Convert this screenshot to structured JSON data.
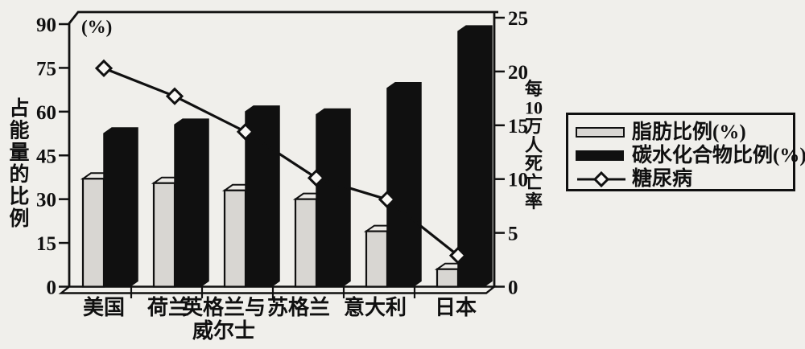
{
  "chart_data": {
    "type": "bar",
    "subtype": "grouped-3d-bars-with-line-overlay",
    "categories": [
      "美国",
      "荷兰",
      "英格兰与\n威尔士",
      "苏格兰",
      "意大利",
      "日本"
    ],
    "series": [
      {
        "name": "脂肪比例(%)",
        "type": "bar",
        "axis": "left",
        "color": "#d8d6d2",
        "values": [
          37,
          35.5,
          33,
          30,
          19,
          6
        ]
      },
      {
        "name": "碳水化合物比例(%)",
        "type": "bar",
        "axis": "left",
        "color": "#101010",
        "values": [
          52.5,
          55.5,
          60,
          59,
          68,
          87.5
        ]
      },
      {
        "name": "糖尿病",
        "type": "line",
        "axis": "right",
        "marker": "diamond",
        "color": "#101010",
        "values": [
          20.3,
          17.7,
          14.4,
          10.1,
          8.1,
          2.9
        ]
      }
    ],
    "left_axis": {
      "label": "占能量的比例",
      "unit": "(%)",
      "ticks": [
        0,
        15,
        30,
        45,
        60,
        75,
        90
      ],
      "range": [
        0,
        90
      ]
    },
    "right_axis": {
      "label": "每10万人死亡率",
      "ticks": [
        0,
        5,
        10,
        15,
        20,
        25
      ],
      "range": [
        0,
        25
      ]
    },
    "legend": {
      "position": "right",
      "items": [
        "脂肪比例(%)",
        "碳水化合物比例(%)",
        "糖尿病"
      ]
    },
    "grid": false,
    "title": ""
  },
  "colors": {
    "ink": "#101010",
    "paper": "#f0efeb",
    "bar_light": "#d8d6d2",
    "bar_light_top": "#eceae6",
    "bar_dark": "#101010",
    "marker_fill": "#f8f7f4"
  }
}
